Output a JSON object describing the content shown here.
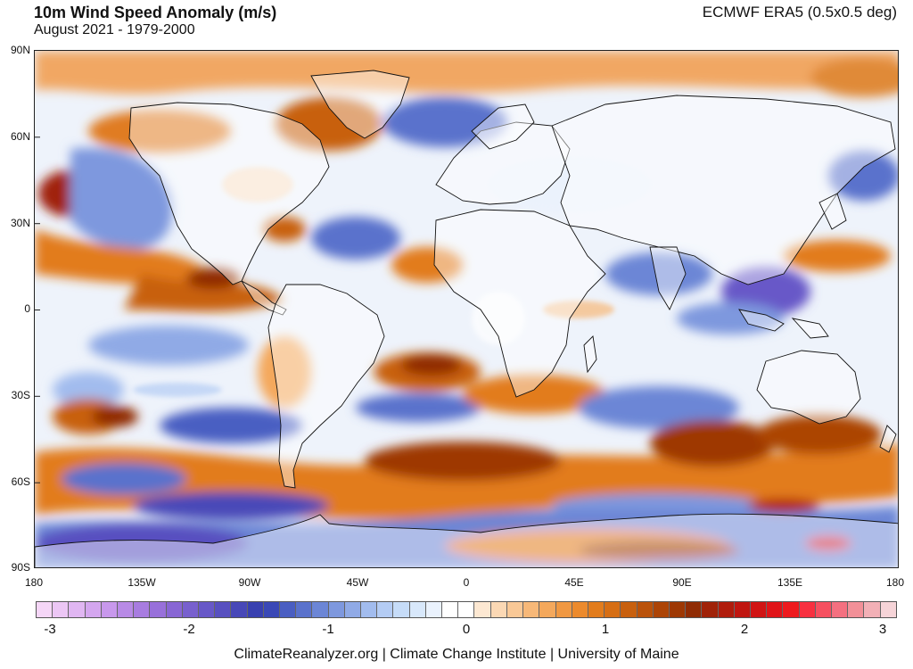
{
  "header": {
    "title": "10m Wind Speed Anomaly (m/s)",
    "subtitle": "August 2021 - 1979-2000",
    "dataset": "ECMWF ERA5 (0.5x0.5 deg)"
  },
  "map": {
    "lat_labels": [
      "90N",
      "60N",
      "30N",
      "0",
      "30S",
      "60S",
      "90S"
    ],
    "lon_labels": [
      "180",
      "135W",
      "90W",
      "45W",
      "0",
      "45E",
      "90E",
      "135E",
      "180"
    ]
  },
  "colorbar": {
    "labels": [
      "-3",
      "-2",
      "-1",
      "0",
      "1",
      "2",
      "3"
    ],
    "colors": [
      "#f5d6f7",
      "#ecc6f5",
      "#e0b6f2",
      "#d4a6ef",
      "#c898ec",
      "#b88ae6",
      "#a87ce0",
      "#9870da",
      "#8866d4",
      "#7860ce",
      "#6858c8",
      "#5850c0",
      "#4848b8",
      "#3840b0",
      "#3a48b6",
      "#4a5ec2",
      "#5a72cc",
      "#6c86d6",
      "#7e98de",
      "#90aae6",
      "#a2bcee",
      "#b4ccf4",
      "#c6dcf8",
      "#d8e8fb",
      "#eaf2fd",
      "#ffffff",
      "#ffffff",
      "#fde8d2",
      "#fbd8b4",
      "#f9c896",
      "#f7b878",
      "#f4a85c",
      "#f09842",
      "#ec8a2c",
      "#e27c1c",
      "#d66e14",
      "#c8600e",
      "#ba520a",
      "#ac4406",
      "#9e3804",
      "#902c04",
      "#a02208",
      "#b01c0c",
      "#c01610",
      "#d01414",
      "#e01418",
      "#ee1a1e",
      "#f83040",
      "#f65060",
      "#f47080",
      "#f29098",
      "#f2b0b6",
      "#f6d4d8"
    ]
  },
  "footer": {
    "credit": "ClimateReanalyzer.org | Climate Change Institute | University of Maine"
  }
}
